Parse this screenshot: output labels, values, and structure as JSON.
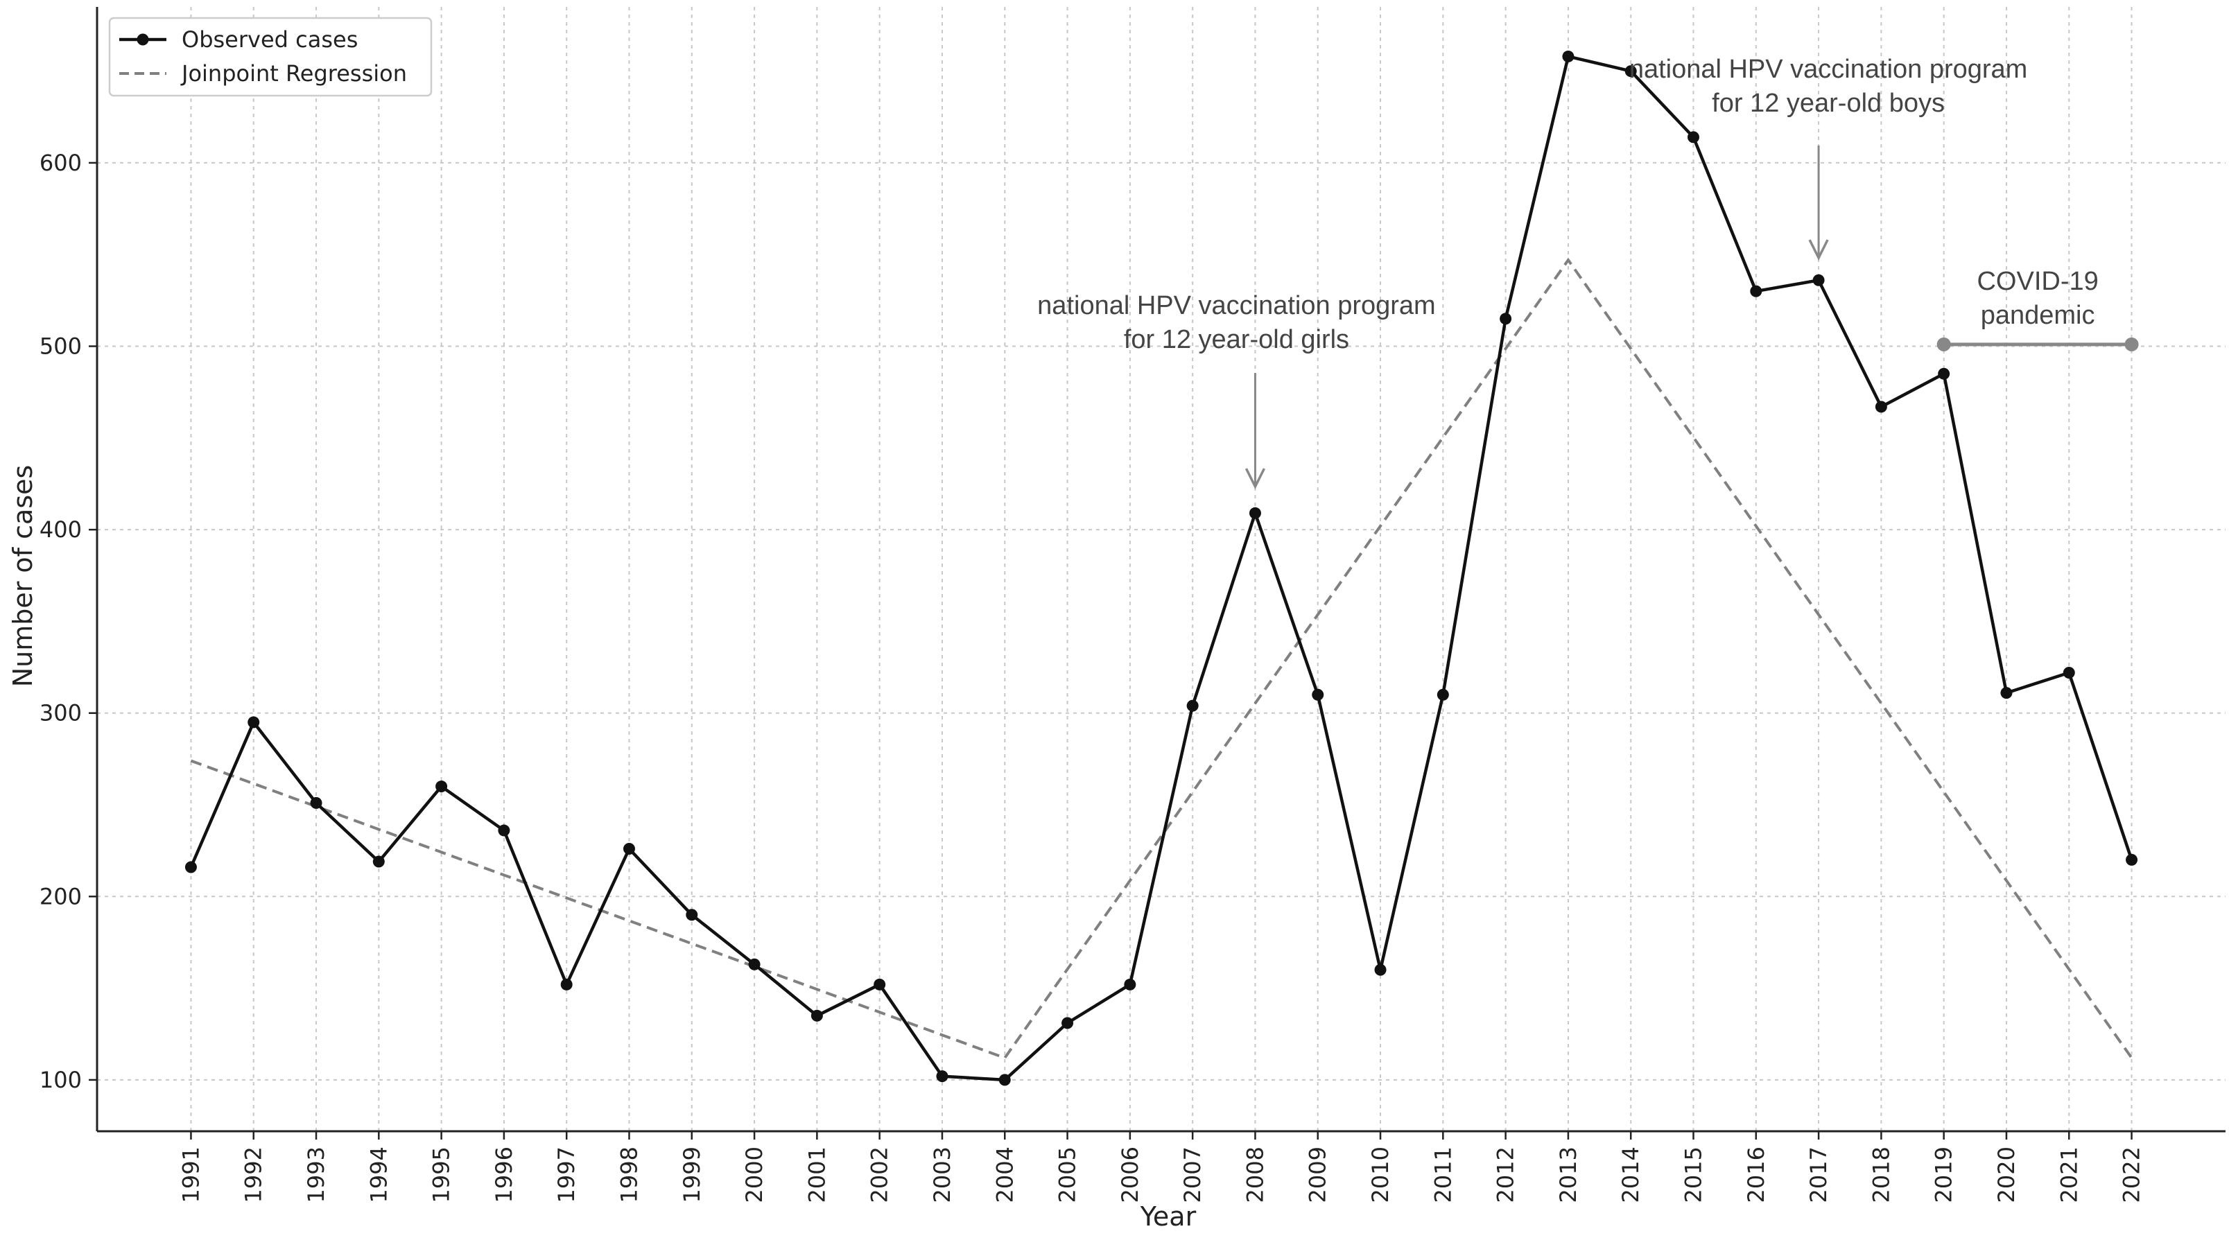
{
  "chart_data": {
    "type": "line",
    "xlabel": "Year",
    "ylabel": "Number of cases",
    "x": [
      1991,
      1992,
      1993,
      1994,
      1995,
      1996,
      1997,
      1998,
      1999,
      2000,
      2001,
      2002,
      2003,
      2004,
      2005,
      2006,
      2007,
      2008,
      2009,
      2010,
      2011,
      2012,
      2013,
      2014,
      2015,
      2016,
      2017,
      2018,
      2019,
      2020,
      2021,
      2022
    ],
    "xlim": [
      1989.5,
      2023.5
    ],
    "ylim": [
      72,
      685
    ],
    "yticks": [
      100,
      200,
      300,
      400,
      500,
      600
    ],
    "grid": true,
    "legend_position": "top-left",
    "series": [
      {
        "name": "Observed cases",
        "style": "solid-with-markers",
        "color": "#111111",
        "values": [
          216,
          295,
          251,
          219,
          260,
          236,
          152,
          226,
          190,
          163,
          135,
          152,
          102,
          100,
          131,
          152,
          304,
          409,
          310,
          160,
          310,
          515,
          658,
          650,
          614,
          530,
          536,
          467,
          485,
          311,
          322,
          220
        ]
      },
      {
        "name": "Joinpoint Regression",
        "style": "dashed",
        "color": "#808080",
        "points": [
          [
            1991,
            274
          ],
          [
            2004,
            112
          ],
          [
            2013,
            547
          ],
          [
            2022,
            112
          ]
        ]
      }
    ],
    "annotations": [
      {
        "lines": [
          "national HPV vaccination program",
          "for 12 year-old girls"
        ],
        "x": 2008,
        "arrow_from_y": 388,
        "arrow_to_y": 420
      },
      {
        "lines": [
          "national HPV vaccination program",
          "for 12 year-old boys"
        ],
        "x": 2017,
        "arrow_from_y": 633,
        "arrow_to_y": 545
      },
      {
        "lines": [
          "COVID-19",
          "pandemic"
        ],
        "range": [
          2019,
          2022
        ],
        "y": 501
      }
    ],
    "annotation_color": "#888888"
  }
}
